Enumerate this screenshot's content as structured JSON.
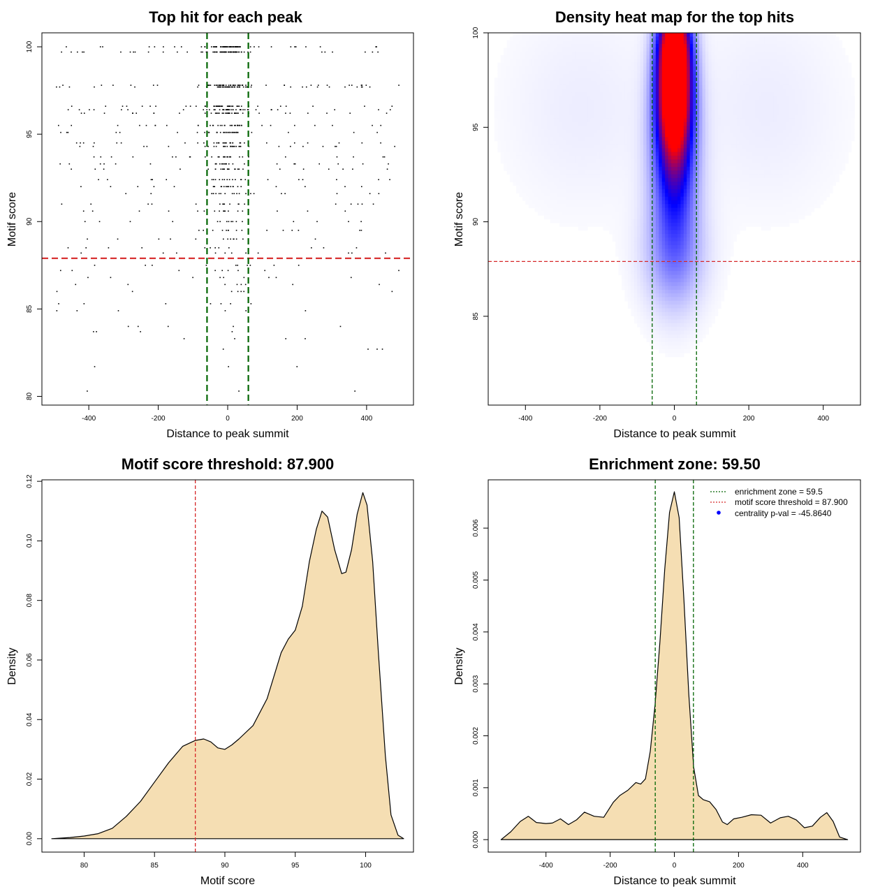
{
  "colors": {
    "threshold_line": "#d62728",
    "zone_line": "#006400",
    "density_fill": "#f5deb3",
    "heat_low": "#ffffff",
    "heat_mid": "#0000ff",
    "heat_high": "#ff0000",
    "legend_dot": "#0000ff"
  },
  "chart_data": [
    {
      "type": "scatter",
      "title": "Top hit for each peak",
      "xlabel": "Distance to peak summit",
      "ylabel": "Motif score",
      "xlim": [
        -535,
        535
      ],
      "ylim": [
        79.5,
        100.8
      ],
      "xticks": [
        -400,
        -200,
        0,
        200,
        400
      ],
      "yticks": [
        80,
        85,
        90,
        95,
        100
      ],
      "hline": 87.9,
      "vlines": [
        -59.5,
        59.5
      ],
      "score_levels": [
        100,
        99.7,
        97.8,
        97.7,
        96.6,
        96.4,
        96.2,
        95.5,
        95.1,
        94.5,
        94.3,
        93.7,
        93.3,
        93.0,
        92.4,
        92.0,
        91.6,
        91.0,
        90.6,
        90.0,
        89.5,
        89.0,
        88.5,
        88.2,
        87.5,
        87.2,
        86.8,
        86.4,
        86.0,
        85.3,
        84.9,
        84.0,
        83.7,
        83.3,
        82.7,
        81.7,
        80.3
      ]
    },
    {
      "type": "heatmap",
      "title": "Density heat map for the top hits",
      "xlabel": "Distance to peak summit",
      "ylabel": "Motif score",
      "xlim": [
        -500,
        500
      ],
      "ylim": [
        80.3,
        100
      ],
      "xticks": [
        -400,
        -200,
        0,
        200,
        400
      ],
      "yticks": [
        85,
        90,
        95,
        100
      ],
      "hline": 87.9,
      "vlines": [
        -59.5,
        59.5
      ],
      "hotspots": [
        {
          "x": 0,
          "y": 97,
          "sx": 30,
          "sy": 2.2,
          "w": 2.2
        },
        {
          "x": 0,
          "y": 99.5,
          "sx": 28,
          "sy": 1.6,
          "w": 1.6
        },
        {
          "x": 0,
          "y": 94.5,
          "sx": 38,
          "sy": 3.0,
          "w": 1.0
        },
        {
          "x": 0,
          "y": 91,
          "sx": 45,
          "sy": 3.0,
          "w": 0.35
        },
        {
          "x": 0,
          "y": 88,
          "sx": 60,
          "sy": 2.0,
          "w": 0.3
        },
        {
          "x": -250,
          "y": 96,
          "sx": 150,
          "sy": 4.0,
          "w": 0.07
        },
        {
          "x": 250,
          "y": 96,
          "sx": 150,
          "sy": 4.0,
          "w": 0.07
        }
      ]
    },
    {
      "type": "area",
      "title": "Motif score threshold: 87.900",
      "xlabel": "Motif score",
      "ylabel": "Density",
      "xlim": [
        77.0,
        103.4
      ],
      "ylim": [
        -0.0045,
        0.1205
      ],
      "xticks": [
        80,
        85,
        90,
        95,
        100
      ],
      "yticks": [
        0.0,
        0.02,
        0.04,
        0.06,
        0.08,
        0.1,
        0.12
      ],
      "ytick_labels": [
        "0.00",
        "0.02",
        "0.04",
        "0.06",
        "0.08",
        "0.10",
        "0.12"
      ],
      "vline": 87.9,
      "x": [
        77.7,
        79,
        80,
        81,
        82,
        83,
        84,
        85,
        86,
        87,
        87.9,
        88.5,
        89,
        89.5,
        90,
        90.5,
        91,
        92,
        93,
        94,
        94.5,
        95,
        95.5,
        96,
        96.5,
        96.9,
        97.3,
        97.8,
        98.3,
        98.6,
        99,
        99.4,
        99.8,
        100.1,
        100.5,
        100.9,
        101.4,
        101.8,
        102.3,
        102.7
      ],
      "y": [
        0.0,
        0.0004,
        0.0009,
        0.0017,
        0.0035,
        0.0075,
        0.0125,
        0.019,
        0.0255,
        0.031,
        0.033,
        0.0335,
        0.0325,
        0.0305,
        0.03,
        0.0315,
        0.0335,
        0.038,
        0.047,
        0.0625,
        0.067,
        0.07,
        0.078,
        0.093,
        0.104,
        0.11,
        0.108,
        0.097,
        0.089,
        0.0895,
        0.097,
        0.109,
        0.1162,
        0.112,
        0.093,
        0.063,
        0.028,
        0.008,
        0.0012,
        0.0
      ]
    },
    {
      "type": "area",
      "title": "Enrichment zone: 59.50",
      "xlabel": "Distance to peak summit",
      "ylabel": "Density",
      "xlim": [
        -580,
        580
      ],
      "ylim": [
        -0.00024,
        0.00693
      ],
      "xticks": [
        -400,
        -200,
        0,
        200,
        400
      ],
      "yticks": [
        0.0,
        0.001,
        0.002,
        0.003,
        0.004,
        0.005,
        0.006
      ],
      "ytick_labels": [
        "0.000",
        "0.001",
        "0.002",
        "0.003",
        "0.004",
        "0.005",
        "0.006"
      ],
      "vlines": [
        -59.5,
        59.5
      ],
      "x": [
        -540,
        -510,
        -480,
        -455,
        -430,
        -400,
        -380,
        -355,
        -330,
        -305,
        -280,
        -250,
        -220,
        -190,
        -170,
        -145,
        -120,
        -105,
        -90,
        -75,
        -60,
        -45,
        -30,
        -15,
        0,
        15,
        30,
        45,
        60,
        75,
        90,
        110,
        130,
        150,
        165,
        185,
        210,
        240,
        270,
        300,
        330,
        355,
        380,
        405,
        430,
        455,
        475,
        495,
        515,
        540
      ],
      "y": [
        0.0,
        0.00015,
        0.00035,
        0.00045,
        0.00033,
        0.00031,
        0.00032,
        0.0004,
        0.00029,
        0.00038,
        0.00053,
        0.00045,
        0.00043,
        0.00072,
        0.00085,
        0.00095,
        0.0011,
        0.00107,
        0.00117,
        0.0017,
        0.0026,
        0.0038,
        0.0052,
        0.0063,
        0.0067,
        0.0062,
        0.0046,
        0.0028,
        0.0014,
        0.00085,
        0.00077,
        0.00073,
        0.00058,
        0.00034,
        0.00029,
        0.0004,
        0.00043,
        0.00048,
        0.00047,
        0.00032,
        0.00042,
        0.00045,
        0.00038,
        0.00023,
        0.00026,
        0.00043,
        0.00052,
        0.00035,
        5e-05,
        0.0
      ],
      "legend": [
        {
          "label": "enrichment zone = 59.5",
          "kind": "dotted-line",
          "color": "#006400"
        },
        {
          "label": "motif score threshold = 87.900",
          "kind": "dotted-line",
          "color": "#d62728"
        },
        {
          "label": "centrality p-val = -45.8640",
          "kind": "dot",
          "color": "#0000ff"
        }
      ],
      "legend_position": "top-right"
    }
  ]
}
